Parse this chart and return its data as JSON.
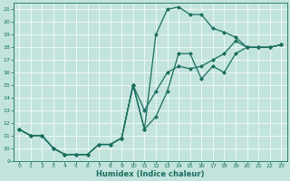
{
  "bg_color": "#c2e4dc",
  "line_color": "#1a6e60",
  "xlabel": "Humidex (Indice chaleur)",
  "xlim": [
    -0.5,
    23.5
  ],
  "ylim": [
    9,
    21.5
  ],
  "yticks": [
    9,
    10,
    11,
    12,
    13,
    14,
    15,
    16,
    17,
    18,
    19,
    20,
    21
  ],
  "xticks": [
    0,
    1,
    2,
    3,
    4,
    5,
    6,
    7,
    8,
    9,
    10,
    11,
    12,
    13,
    14,
    15,
    16,
    17,
    18,
    19,
    20,
    21,
    22,
    23
  ],
  "line1_x": [
    0,
    1,
    2,
    3,
    4,
    5,
    6,
    7,
    8,
    9,
    10,
    11,
    12,
    13,
    14,
    15,
    16,
    17,
    18,
    19,
    20,
    21,
    22,
    23
  ],
  "line1_y": [
    11.5,
    11.0,
    11.0,
    10.0,
    9.5,
    9.5,
    9.5,
    10.3,
    10.3,
    10.8,
    15.0,
    11.5,
    19.0,
    21.0,
    21.2,
    20.6,
    20.6,
    19.5,
    19.2,
    18.8,
    18.0,
    18.0,
    18.0,
    18.2
  ],
  "line2_x": [
    0,
    1,
    2,
    3,
    4,
    5,
    6,
    7,
    8,
    9,
    10,
    11,
    12,
    13,
    14,
    15,
    16,
    17,
    18,
    19,
    20,
    21,
    22,
    23
  ],
  "line2_y": [
    11.5,
    11.0,
    11.0,
    10.0,
    9.5,
    9.5,
    9.5,
    10.3,
    10.3,
    10.8,
    15.0,
    13.0,
    14.5,
    16.0,
    16.5,
    16.3,
    16.5,
    17.0,
    17.5,
    18.5,
    18.0,
    18.0,
    18.0,
    18.2
  ],
  "line3_x": [
    0,
    1,
    2,
    3,
    4,
    5,
    6,
    7,
    8,
    9,
    10,
    11,
    12,
    13,
    14,
    15,
    16,
    17,
    18,
    19,
    20,
    21,
    22,
    23
  ],
  "line3_y": [
    11.5,
    11.0,
    11.0,
    10.0,
    9.5,
    9.5,
    9.5,
    10.3,
    10.3,
    10.8,
    15.0,
    11.5,
    12.5,
    14.5,
    17.5,
    17.5,
    15.5,
    16.5,
    16.0,
    17.5,
    18.0,
    18.0,
    18.0,
    18.2
  ]
}
